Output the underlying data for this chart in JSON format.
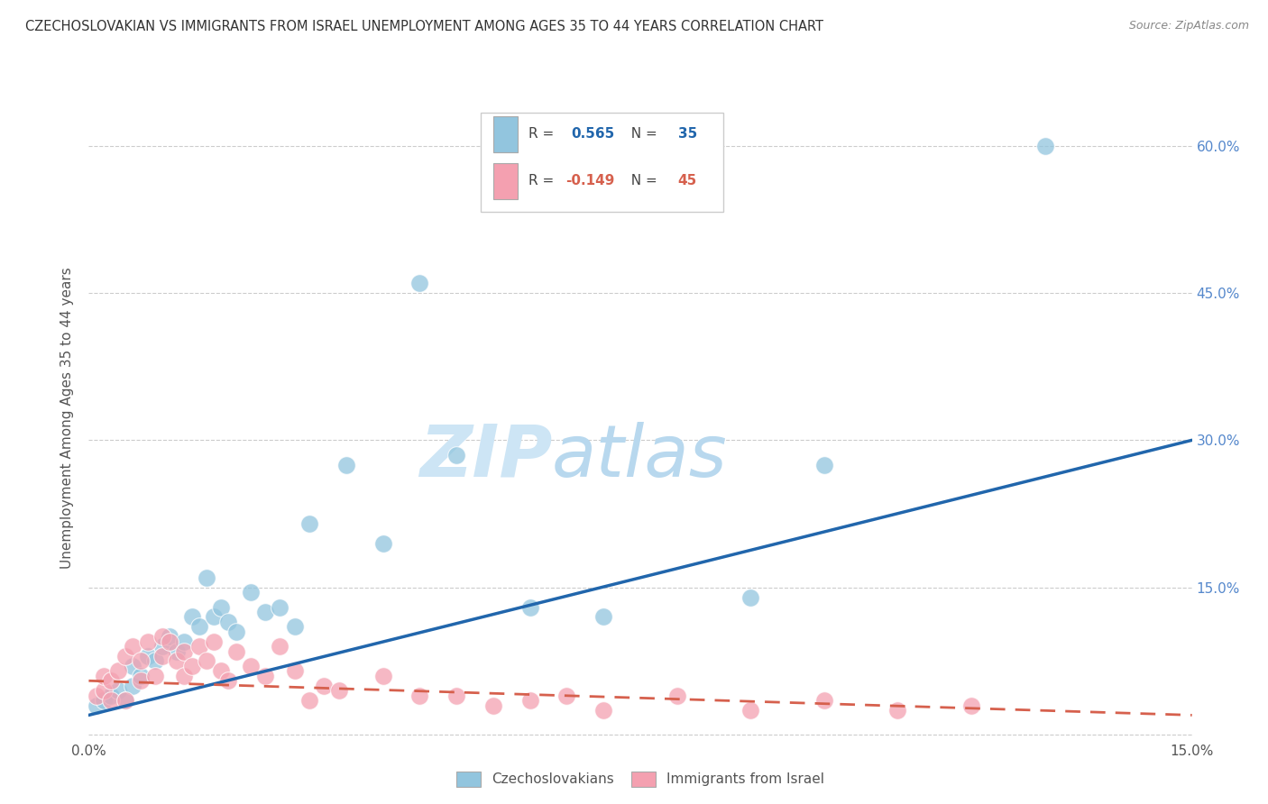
{
  "title": "CZECHOSLOVAKIAN VS IMMIGRANTS FROM ISRAEL UNEMPLOYMENT AMONG AGES 35 TO 44 YEARS CORRELATION CHART",
  "source": "Source: ZipAtlas.com",
  "ylabel": "Unemployment Among Ages 35 to 44 years",
  "xlim": [
    0.0,
    0.15
  ],
  "ylim": [
    -0.005,
    0.65
  ],
  "blue_color": "#92c5de",
  "pink_color": "#f4a0b0",
  "blue_line_color": "#2166ac",
  "pink_line_color": "#d6604d",
  "blue_dots_x": [
    0.001,
    0.002,
    0.003,
    0.004,
    0.005,
    0.006,
    0.006,
    0.007,
    0.008,
    0.009,
    0.01,
    0.011,
    0.012,
    0.013,
    0.014,
    0.015,
    0.016,
    0.017,
    0.018,
    0.019,
    0.02,
    0.022,
    0.024,
    0.026,
    0.028,
    0.03,
    0.035,
    0.04,
    0.045,
    0.05,
    0.06,
    0.07,
    0.09,
    0.1,
    0.13
  ],
  "blue_dots_y": [
    0.03,
    0.035,
    0.04,
    0.045,
    0.035,
    0.05,
    0.07,
    0.06,
    0.08,
    0.075,
    0.09,
    0.1,
    0.085,
    0.095,
    0.12,
    0.11,
    0.16,
    0.12,
    0.13,
    0.115,
    0.105,
    0.145,
    0.125,
    0.13,
    0.11,
    0.215,
    0.275,
    0.195,
    0.46,
    0.285,
    0.13,
    0.12,
    0.14,
    0.275,
    0.6
  ],
  "pink_dots_x": [
    0.001,
    0.002,
    0.002,
    0.003,
    0.003,
    0.004,
    0.005,
    0.005,
    0.006,
    0.007,
    0.007,
    0.008,
    0.009,
    0.01,
    0.01,
    0.011,
    0.012,
    0.013,
    0.013,
    0.014,
    0.015,
    0.016,
    0.017,
    0.018,
    0.019,
    0.02,
    0.022,
    0.024,
    0.026,
    0.028,
    0.03,
    0.032,
    0.034,
    0.04,
    0.045,
    0.05,
    0.055,
    0.06,
    0.065,
    0.07,
    0.08,
    0.09,
    0.1,
    0.11,
    0.12
  ],
  "pink_dots_y": [
    0.04,
    0.045,
    0.06,
    0.035,
    0.055,
    0.065,
    0.035,
    0.08,
    0.09,
    0.055,
    0.075,
    0.095,
    0.06,
    0.1,
    0.08,
    0.095,
    0.075,
    0.06,
    0.085,
    0.07,
    0.09,
    0.075,
    0.095,
    0.065,
    0.055,
    0.085,
    0.07,
    0.06,
    0.09,
    0.065,
    0.035,
    0.05,
    0.045,
    0.06,
    0.04,
    0.04,
    0.03,
    0.035,
    0.04,
    0.025,
    0.04,
    0.025,
    0.035,
    0.025,
    0.03
  ],
  "blue_line_x0": 0.0,
  "blue_line_y0": 0.02,
  "blue_line_x1": 0.15,
  "blue_line_y1": 0.3,
  "pink_line_x0": 0.0,
  "pink_line_y0": 0.055,
  "pink_line_x1": 0.15,
  "pink_line_y1": 0.02
}
